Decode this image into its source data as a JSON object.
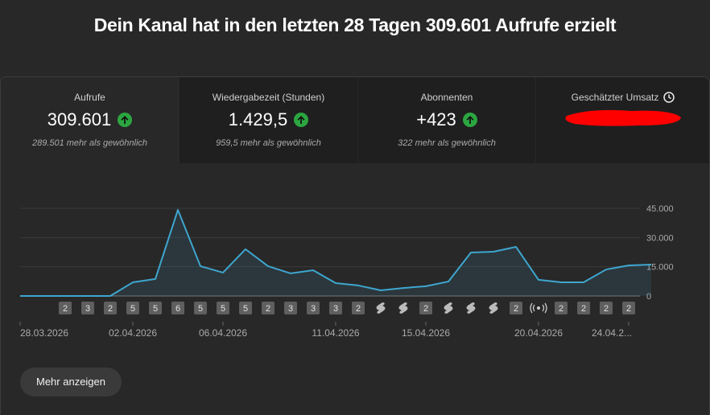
{
  "header": {
    "title": "Dein Kanal hat in den letzten 28 Tagen 309.601 Aufrufe erzielt"
  },
  "cards": [
    {
      "label": "Aufrufe",
      "value": "309.601",
      "comparison": "289.501 mehr als gewöhnlich"
    },
    {
      "label": "Wiedergabezeit (Stunden)",
      "value": "1.429,5",
      "comparison": "959,5 mehr als gewöhnlich"
    },
    {
      "label": "Abonnenten",
      "value": "+423",
      "comparison": "322 mehr als gewöhnlich"
    },
    {
      "label": "Geschätzter Umsatz"
    }
  ],
  "chart_data": {
    "type": "line",
    "categories": [
      "28.03.2026",
      null,
      null,
      null,
      null,
      "02.04.2026",
      null,
      null,
      null,
      "06.04.2026",
      null,
      null,
      null,
      null,
      "11.04.2026",
      null,
      null,
      null,
      "15.04.2026",
      null,
      null,
      null,
      null,
      "20.04.2026",
      null,
      null,
      null,
      "24.04.2...",
      null
    ],
    "values": [
      0,
      0,
      0,
      0,
      0,
      7000,
      8700,
      44200,
      15300,
      12000,
      24000,
      15300,
      11600,
      13200,
      6600,
      5400,
      2900,
      4100,
      5000,
      7400,
      22300,
      22700,
      25200,
      8300,
      7000,
      7000,
      13600,
      15700,
      16100
    ],
    "color": "#3ea6cf",
    "ylim": [
      0,
      45000
    ],
    "yticks": [
      0,
      {
        "value": 15000,
        "label": "15.000"
      },
      {
        "value": 30000,
        "label": "30.000"
      },
      {
        "value": 45000,
        "label": "45.000"
      }
    ],
    "grid": true,
    "day_markers": [
      null,
      null,
      2,
      3,
      2,
      5,
      5,
      6,
      5,
      5,
      5,
      2,
      3,
      3,
      3,
      2,
      "shorts",
      "shorts",
      2,
      "shorts",
      "shorts",
      "shorts",
      2,
      "live",
      2,
      2,
      2,
      2,
      null
    ]
  },
  "button": {
    "label": "Mehr anzeigen"
  }
}
